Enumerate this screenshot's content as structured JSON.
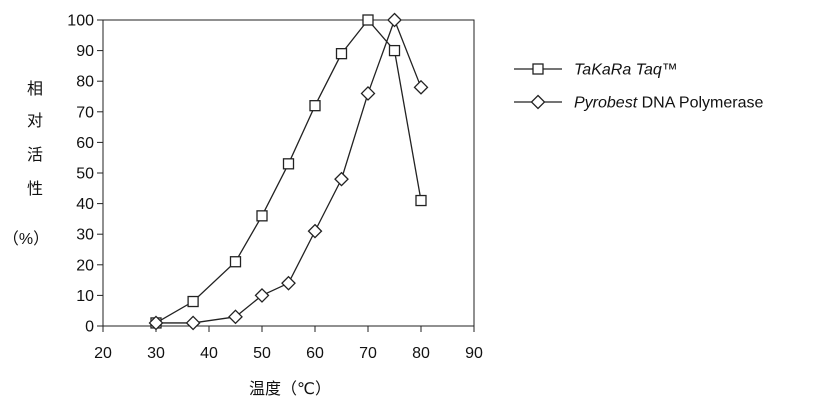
{
  "chart_data": {
    "type": "line",
    "ylabel_chars": [
      "相",
      "对",
      "活",
      "性",
      "（%）"
    ],
    "xlabel": "温度（℃）",
    "xlim": [
      20,
      90
    ],
    "ylim": [
      0,
      100
    ],
    "xticks": [
      20,
      30,
      40,
      50,
      60,
      70,
      80,
      90
    ],
    "yticks": [
      0,
      10,
      20,
      30,
      40,
      50,
      60,
      70,
      80,
      90,
      100
    ],
    "grid": false,
    "legend_position": "right",
    "series": [
      {
        "name_italic": "TaKaRa Taq",
        "name_plain": "™",
        "marker": "square",
        "x": [
          30,
          37,
          45,
          50,
          55,
          60,
          65,
          70,
          75,
          80
        ],
        "y": [
          1,
          8,
          21,
          36,
          53,
          72,
          89,
          100,
          90,
          41
        ]
      },
      {
        "name_italic": "Pyrobest",
        "name_plain": " DNA Polymerase",
        "marker": "diamond",
        "x": [
          30,
          37,
          45,
          50,
          55,
          60,
          65,
          70,
          75,
          80
        ],
        "y": [
          1,
          1,
          3,
          10,
          14,
          31,
          48,
          76,
          100,
          78
        ]
      }
    ]
  }
}
